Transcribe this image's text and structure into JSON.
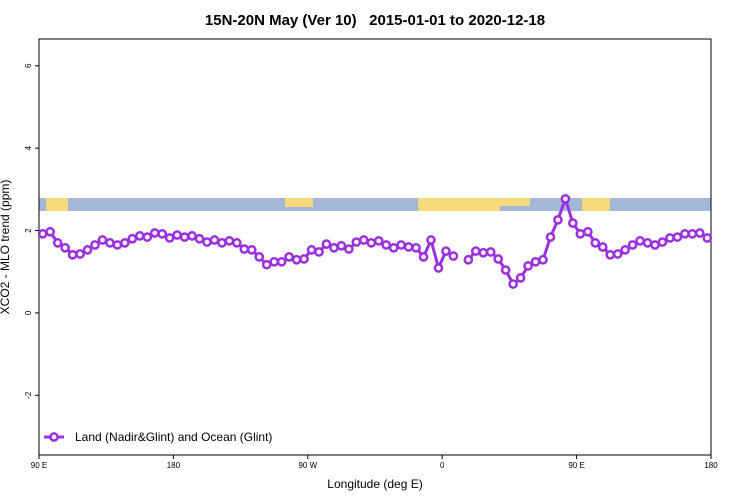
{
  "chart_data": {
    "type": "line",
    "title": "15N-20N May (Ver 10)   2015-01-01 to 2020-12-18",
    "x_label": "Longitude (deg E)",
    "y_label": "XCO2 - MLO trend (ppm)",
    "xlim": [
      90,
      540
    ],
    "ylim": [
      -3.45,
      6.65
    ],
    "xticks": [
      {
        "value": 90,
        "label": "90 E"
      },
      {
        "value": 180,
        "label": "180"
      },
      {
        "value": 270,
        "label": "90 W"
      },
      {
        "value": 360,
        "label": "0"
      },
      {
        "value": 450,
        "label": "90 E"
      },
      {
        "value": 540,
        "label": "180"
      }
    ],
    "yticks": [
      -2,
      0,
      2,
      4,
      6
    ],
    "legend": "bottom-left",
    "x": [
      92.5,
      97.5,
      102.5,
      107.5,
      112.5,
      117.5,
      122.5,
      127.5,
      132.5,
      137.5,
      142.5,
      147.5,
      152.5,
      157.5,
      162.5,
      167.5,
      172.5,
      177.5,
      182.5,
      187.5,
      192.5,
      197.5,
      202.5,
      207.5,
      212.5,
      217.5,
      222.5,
      227.5,
      232.5,
      237.5,
      242.5,
      247.5,
      252.5,
      257.5,
      262.5,
      267.5,
      272.5,
      277.5,
      282.5,
      287.5,
      292.5,
      297.5,
      302.5,
      307.5,
      312.5,
      317.5,
      322.5,
      327.5,
      332.5,
      337.5,
      342.5,
      347.5,
      352.5,
      357.5,
      362.5,
      367.5,
      372.5,
      377.5,
      382.5,
      387.5,
      392.5,
      397.5,
      402.5,
      407.5,
      412.5,
      417.5,
      422.5,
      427.5,
      432.5,
      437.5,
      442.5,
      447.5,
      452.5,
      457.5,
      462.5,
      467.5,
      472.5,
      477.5,
      482.5,
      487.5,
      492.5,
      497.5,
      502.5,
      507.5,
      512.5,
      517.5,
      522.5,
      527.5,
      532.5,
      537.5
    ],
    "series": [
      {
        "name": "Land (Nadir&Glint) and Ocean (Glint)",
        "color": "#9b30e0",
        "values": [
          1.92,
          1.97,
          1.7,
          1.58,
          1.41,
          1.43,
          1.53,
          1.65,
          1.77,
          1.7,
          1.65,
          1.7,
          1.8,
          1.87,
          1.84,
          1.94,
          1.92,
          1.82,
          1.89,
          1.84,
          1.87,
          1.8,
          1.72,
          1.77,
          1.7,
          1.75,
          1.7,
          1.55,
          1.53,
          1.36,
          1.17,
          1.24,
          1.24,
          1.36,
          1.29,
          1.31,
          1.53,
          1.48,
          1.67,
          1.58,
          1.63,
          1.55,
          1.72,
          1.77,
          1.7,
          1.75,
          1.65,
          1.58,
          1.65,
          1.6,
          1.58,
          1.36,
          1.77,
          1.09,
          1.5,
          1.38,
          null,
          1.29,
          1.5,
          1.46,
          1.48,
          1.31,
          1.04,
          0.7,
          0.85,
          1.14,
          1.24,
          1.29,
          1.84,
          2.26,
          2.77,
          2.18,
          1.92,
          1.97,
          1.7,
          1.6,
          1.41,
          1.43,
          1.53,
          1.65,
          1.75,
          1.7,
          1.65,
          1.72,
          1.82,
          1.84,
          1.92,
          1.92,
          1.94,
          1.82
        ]
      }
    ]
  }
}
